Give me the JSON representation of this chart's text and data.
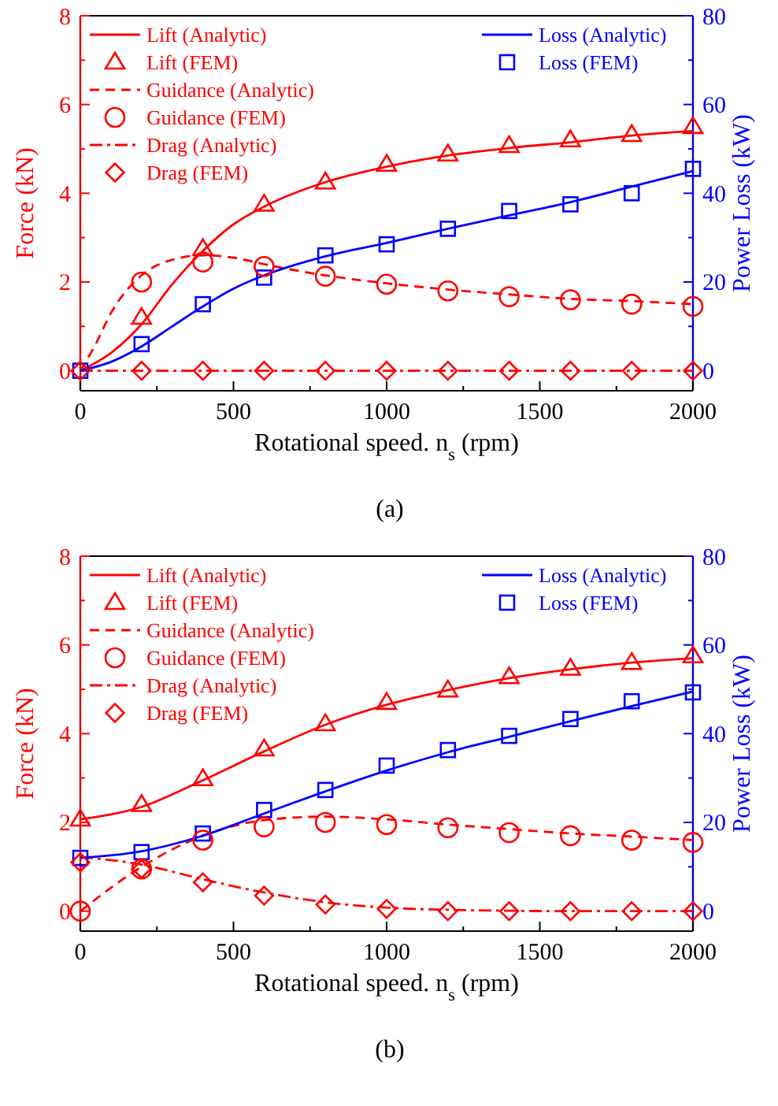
{
  "chart_data": [
    {
      "type": "line",
      "xlabel": "Rotational speed. n$_{s}$ (rpm)",
      "ylabel": "Force (kN)",
      "y2label": "Power Loss (kW)",
      "annotations": [
        "(a)"
      ],
      "xlim": [
        0,
        2000
      ],
      "xticks": [
        0,
        {
          "value": 250,
          "label": null
        },
        500,
        {
          "value": 750,
          "label": null
        },
        1000,
        {
          "value": 1250,
          "label": null
        },
        1500,
        {
          "value": 1750,
          "label": null
        },
        2000
      ],
      "ylim": [
        -0.45,
        8
      ],
      "yticks": [
        0,
        {
          "value": 1,
          "label": null
        },
        2,
        {
          "value": 3,
          "label": null
        },
        4,
        {
          "value": 5,
          "label": null
        },
        6,
        {
          "value": 7,
          "label": null
        },
        8
      ],
      "y2lim": [
        -4.5,
        80
      ],
      "y2ticks": [
        0,
        {
          "value": 10,
          "label": null
        },
        20,
        {
          "value": 30,
          "label": null
        },
        40,
        {
          "value": 50,
          "label": null
        },
        60,
        {
          "value": 70,
          "label": null
        },
        80
      ],
      "legend": "top",
      "series": [
        {
          "name": "Lift (Analytic)",
          "type": "line",
          "line_style": "solid",
          "marker": "none",
          "color": "#ff0000",
          "x": [
            0,
            100,
            200,
            300,
            400,
            500,
            600,
            800,
            1000,
            1200,
            1400,
            1600,
            1800,
            2000
          ],
          "values": [
            0,
            0.4,
            1.05,
            1.95,
            2.7,
            3.3,
            3.7,
            4.25,
            4.6,
            4.85,
            5.02,
            5.15,
            5.3,
            5.4
          ]
        },
        {
          "name": "Lift (FEM)",
          "type": "scatter",
          "marker": "triangle",
          "color": "#ff0000",
          "x": [
            200,
            400,
            600,
            800,
            1000,
            1200,
            1400,
            1600,
            1800,
            2000
          ],
          "values": [
            1.2,
            2.75,
            3.75,
            4.25,
            4.65,
            4.88,
            5.07,
            5.2,
            5.32,
            5.5
          ]
        },
        {
          "name": "Guidance (Analytic)",
          "type": "line",
          "line_style": "dashed",
          "marker": "none",
          "color": "#ff0000",
          "x": [
            0,
            50,
            100,
            200,
            300,
            400,
            500,
            600,
            800,
            1000,
            1200,
            1400,
            1600,
            1800,
            2000
          ],
          "values": [
            0,
            0.6,
            1.3,
            2.15,
            2.5,
            2.6,
            2.55,
            2.4,
            2.15,
            1.97,
            1.83,
            1.72,
            1.62,
            1.57,
            1.5
          ]
        },
        {
          "name": "Guidance (FEM)",
          "type": "scatter",
          "marker": "circle",
          "color": "#ff0000",
          "x": [
            200,
            400,
            600,
            800,
            1000,
            1200,
            1400,
            1600,
            1800,
            2000
          ],
          "values": [
            2.0,
            2.45,
            2.35,
            2.13,
            1.95,
            1.8,
            1.67,
            1.6,
            1.5,
            1.45
          ]
        },
        {
          "name": "Drag (Analytic)",
          "type": "line",
          "line_style": "dashdot",
          "marker": "none",
          "color": "#ff0000",
          "x": [
            0,
            2000
          ],
          "values": [
            0,
            0
          ]
        },
        {
          "name": "Drag (FEM)",
          "type": "scatter",
          "marker": "diamond",
          "color": "#ff0000",
          "x": [
            0,
            200,
            400,
            600,
            800,
            1000,
            1200,
            1400,
            1600,
            1800,
            2000
          ],
          "values": [
            0,
            0,
            0,
            0,
            0,
            0,
            0,
            0,
            0,
            0,
            0
          ]
        },
        {
          "name": "Loss (Analytic)",
          "type": "line",
          "line_style": "solid",
          "marker": "none",
          "color": "#0000ff",
          "axis": "y2",
          "x": [
            0,
            100,
            200,
            300,
            400,
            500,
            600,
            800,
            1000,
            1200,
            1400,
            1600,
            1800,
            2000
          ],
          "values": [
            0,
            2,
            5.5,
            10,
            14.5,
            18.5,
            21.5,
            25.8,
            28.8,
            32,
            35,
            38,
            41.5,
            45
          ]
        },
        {
          "name": "Loss (FEM)",
          "type": "scatter",
          "marker": "square",
          "color": "#0000ff",
          "axis": "y2",
          "x": [
            0,
            200,
            400,
            600,
            800,
            1000,
            1200,
            1400,
            1600,
            1800,
            2000
          ],
          "values": [
            0,
            6,
            15,
            21,
            26,
            28.5,
            32,
            36,
            37.5,
            40,
            45.5
          ]
        }
      ]
    },
    {
      "type": "line",
      "xlabel": "Rotational speed. n$_{s}$ (rpm)",
      "ylabel": "Force (kN)",
      "y2label": "Power Loss (kW)",
      "annotations": [
        "(b)"
      ],
      "xlim": [
        0,
        2000
      ],
      "xticks": [
        0,
        {
          "value": 250,
          "label": null
        },
        500,
        {
          "value": 750,
          "label": null
        },
        1000,
        {
          "value": 1250,
          "label": null
        },
        1500,
        {
          "value": 1750,
          "label": null
        },
        2000
      ],
      "ylim": [
        -0.45,
        8
      ],
      "yticks": [
        0,
        {
          "value": 1,
          "label": null
        },
        2,
        {
          "value": 3,
          "label": null
        },
        4,
        {
          "value": 5,
          "label": null
        },
        6,
        {
          "value": 7,
          "label": null
        },
        8
      ],
      "y2lim": [
        -4.5,
        80
      ],
      "y2ticks": [
        0,
        {
          "value": 10,
          "label": null
        },
        20,
        {
          "value": 30,
          "label": null
        },
        40,
        {
          "value": 50,
          "label": null
        },
        60,
        {
          "value": 70,
          "label": null
        },
        80
      ],
      "legend": "top",
      "series": [
        {
          "name": "Lift (Analytic)",
          "type": "line",
          "line_style": "solid",
          "marker": "none",
          "color": "#ff0000",
          "x": [
            0,
            200,
            400,
            600,
            800,
            1000,
            1200,
            1400,
            1600,
            1800,
            2000
          ],
          "values": [
            2.07,
            2.35,
            2.95,
            3.6,
            4.2,
            4.65,
            4.98,
            5.25,
            5.45,
            5.6,
            5.7
          ]
        },
        {
          "name": "Lift (FEM)",
          "type": "scatter",
          "marker": "triangle",
          "color": "#ff0000",
          "x": [
            0,
            200,
            400,
            600,
            800,
            1000,
            1200,
            1400,
            1600,
            1800,
            2000
          ],
          "values": [
            2.07,
            2.4,
            2.98,
            3.65,
            4.22,
            4.7,
            4.98,
            5.28,
            5.47,
            5.6,
            5.75
          ]
        },
        {
          "name": "Guidance (Analytic)",
          "type": "line",
          "line_style": "dashed",
          "marker": "none",
          "color": "#ff0000",
          "x": [
            0,
            200,
            400,
            600,
            800,
            1000,
            1200,
            1400,
            1600,
            1800,
            2000
          ],
          "values": [
            0,
            1.0,
            1.7,
            2.05,
            2.13,
            2.07,
            1.95,
            1.85,
            1.75,
            1.68,
            1.6
          ]
        },
        {
          "name": "Guidance (FEM)",
          "type": "scatter",
          "marker": "circle",
          "color": "#ff0000",
          "x": [
            0,
            200,
            400,
            600,
            800,
            1000,
            1200,
            1400,
            1600,
            1800,
            2000
          ],
          "values": [
            0,
            0.95,
            1.6,
            1.9,
            2.0,
            1.95,
            1.88,
            1.77,
            1.7,
            1.6,
            1.55
          ]
        },
        {
          "name": "Drag (Analytic)",
          "type": "line",
          "line_style": "dashdot",
          "marker": "none",
          "color": "#ff0000",
          "x": [
            0,
            200,
            400,
            600,
            800,
            1000,
            1200,
            1400,
            1600,
            1800,
            2000
          ],
          "values": [
            1.22,
            1.05,
            0.72,
            0.42,
            0.2,
            0.08,
            0.03,
            0.01,
            0,
            0,
            0
          ]
        },
        {
          "name": "Drag (FEM)",
          "type": "scatter",
          "marker": "diamond",
          "color": "#ff0000",
          "x": [
            0,
            200,
            400,
            600,
            800,
            1000,
            1200,
            1400,
            1600,
            1800,
            2000
          ],
          "values": [
            1.1,
            0.95,
            0.65,
            0.35,
            0.15,
            0.05,
            0,
            0,
            0,
            0,
            0
          ]
        },
        {
          "name": "Loss (Analytic)",
          "type": "line",
          "line_style": "solid",
          "marker": "none",
          "color": "#0000ff",
          "axis": "y2",
          "x": [
            0,
            200,
            400,
            600,
            800,
            1000,
            1200,
            1400,
            1600,
            1800,
            2000
          ],
          "values": [
            12,
            13.5,
            17,
            22,
            27,
            31.7,
            35.8,
            39.3,
            42.8,
            46.2,
            49.5
          ]
        },
        {
          "name": "Loss (FEM)",
          "type": "scatter",
          "marker": "square",
          "color": "#0000ff",
          "axis": "y2",
          "x": [
            0,
            200,
            400,
            600,
            800,
            1000,
            1200,
            1400,
            1600,
            1800,
            2000
          ],
          "values": [
            12,
            13.3,
            17.5,
            22.8,
            27.3,
            32.8,
            36.3,
            39.5,
            43.3,
            47.3,
            49.3
          ]
        }
      ]
    }
  ]
}
